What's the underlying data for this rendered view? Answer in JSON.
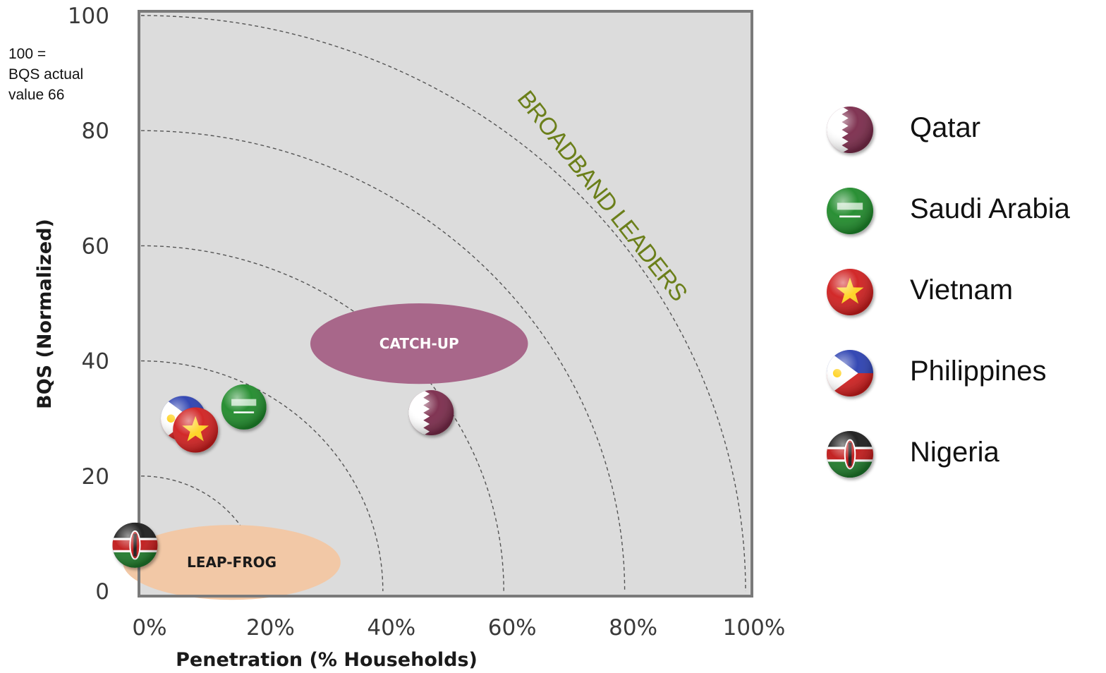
{
  "note": {
    "line1": "100 =",
    "line2": "BQS actual",
    "line3": "value 66"
  },
  "chart_data": {
    "type": "scatter",
    "xlabel": "Penetration (% Households)",
    "ylabel": "BQS (Normalized)",
    "xlim": [
      0,
      100
    ],
    "ylim": [
      0,
      100
    ],
    "x_ticks": [
      "0%",
      "20%",
      "40%",
      "60%",
      "80%",
      "100%"
    ],
    "y_ticks": [
      "0",
      "20",
      "40",
      "60",
      "80",
      "100"
    ],
    "grid": false,
    "background_color": "#dcdcdc",
    "iso_arcs_radius": [
      20,
      40,
      60,
      80,
      100
    ],
    "zones": [
      {
        "label": "CATCH-UP",
        "center": [
          46,
          43
        ],
        "radii": [
          18,
          7
        ],
        "color": "#a8678a"
      },
      {
        "label": "LEAP-FROG",
        "center": [
          15,
          5
        ],
        "radii": [
          18,
          6.5
        ],
        "color": "#f2c8a6"
      }
    ],
    "region_label": "BROADBAND LEADERS",
    "points": [
      {
        "name": "Qatar",
        "x": 48,
        "y": 31,
        "flag": "qatar-flag-icon",
        "color": "#7a2a4a"
      },
      {
        "name": "Saudi Arabia",
        "x": 17,
        "y": 32,
        "flag": "saudi-flag-icon",
        "color": "#1f8a2a"
      },
      {
        "name": "Vietnam",
        "x": 9,
        "y": 28,
        "flag": "vietnam-flag-icon",
        "color": "#d01f1f"
      },
      {
        "name": "Philippines",
        "x": 7,
        "y": 30,
        "flag": "philippines-flag-icon",
        "color": "#2a3fb0"
      },
      {
        "name": "Nigeria",
        "x": -1,
        "y": 8,
        "flag": "kenya-style-flag-icon",
        "color": "#1a1a1a"
      }
    ],
    "legend": {
      "placement": "right",
      "entries": [
        "Qatar",
        "Saudi Arabia",
        "Vietnam",
        "Philippines",
        "Nigeria"
      ]
    }
  }
}
